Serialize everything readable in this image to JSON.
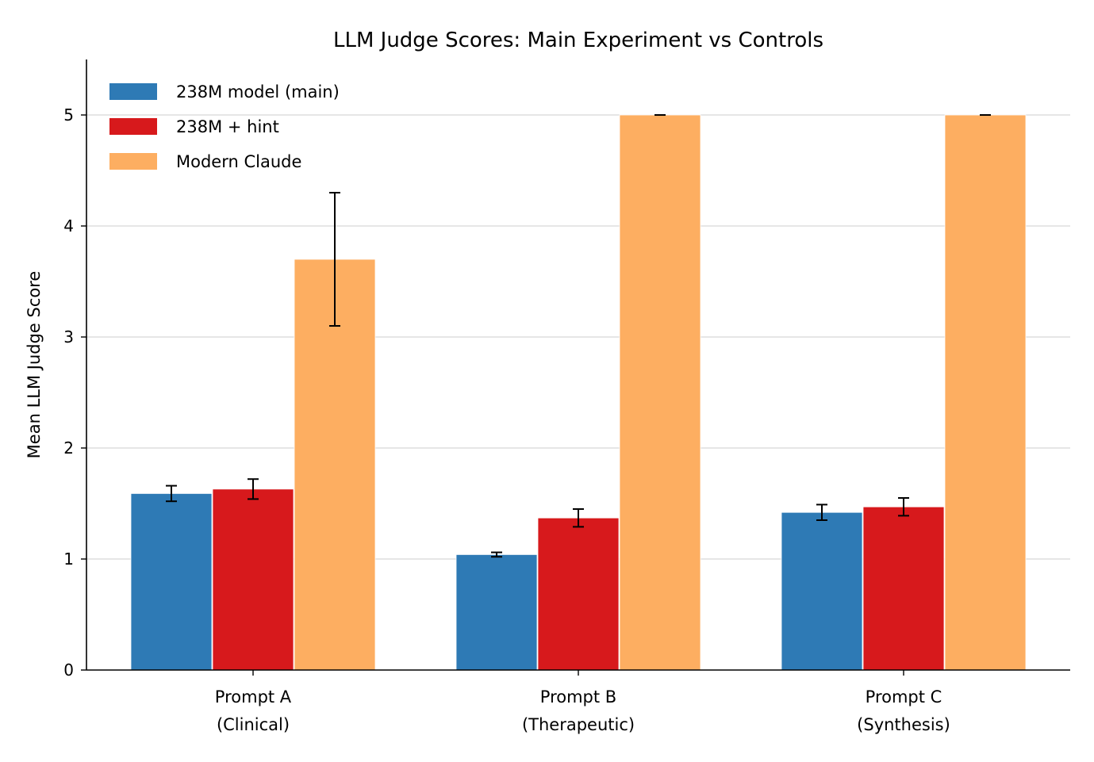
{
  "chart_data": {
    "type": "bar",
    "title": "LLM Judge Scores: Main Experiment vs Controls",
    "xlabel": "",
    "ylabel": "Mean LLM Judge Score",
    "categories": [
      [
        "Prompt A",
        "(Clinical)"
      ],
      [
        "Prompt B",
        "(Therapeutic)"
      ],
      [
        "Prompt C",
        "(Synthesis)"
      ]
    ],
    "series": [
      {
        "name": "238M model (main)",
        "color": "#2e7ab5",
        "values": [
          1.59,
          1.04,
          1.42
        ],
        "errors": [
          0.07,
          0.02,
          0.07
        ]
      },
      {
        "name": "238M + hint",
        "color": "#d7191c",
        "values": [
          1.63,
          1.37,
          1.47
        ],
        "errors": [
          0.09,
          0.08,
          0.08
        ]
      },
      {
        "name": "Modern Claude",
        "color": "#fdae61",
        "values": [
          3.7,
          5.0,
          5.0
        ],
        "errors": [
          0.6,
          0.0,
          0.0
        ]
      }
    ],
    "ylim": [
      0,
      5.5
    ],
    "yticks": [
      0,
      1,
      2,
      3,
      4,
      5
    ],
    "grid": "y",
    "legend_position": "top-left"
  }
}
